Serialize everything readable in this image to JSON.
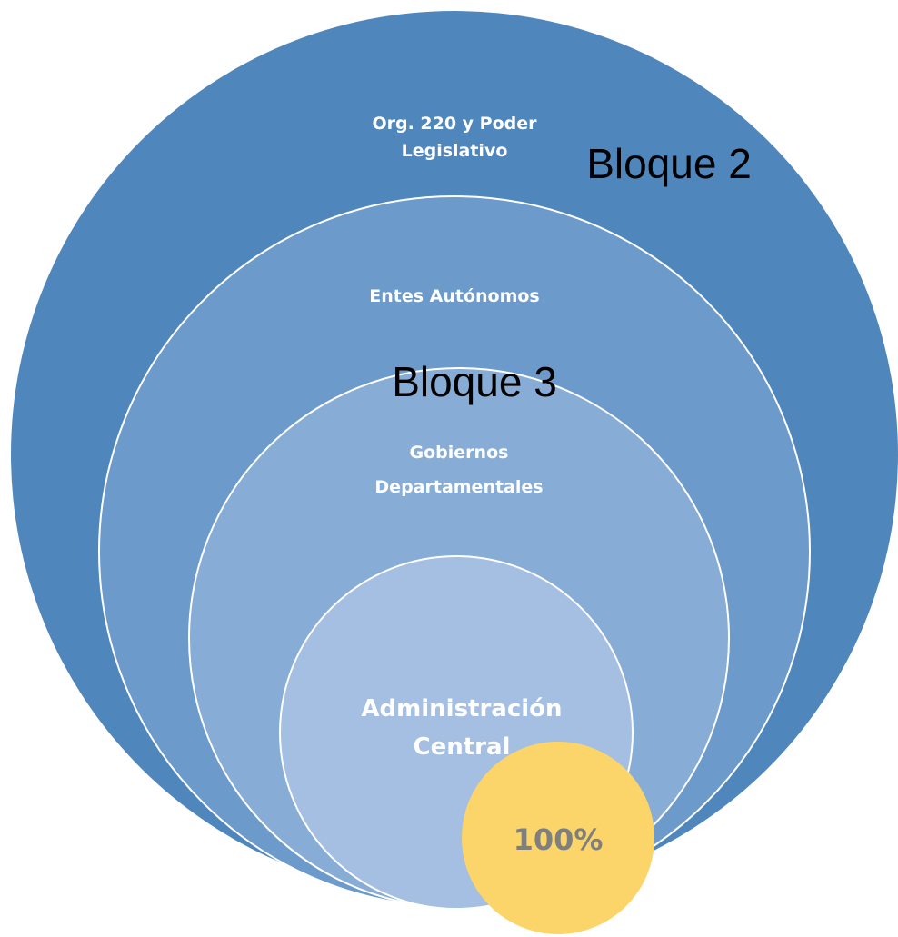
{
  "nodes": [
    {
      "label": "Org. 220 y Poder Legislativo"
    },
    {
      "label": "Entes Autónomos"
    },
    {
      "label": "Gobiernos Departamentales"
    },
    {
      "label": "Administración Central"
    },
    {
      "label": "100%"
    }
  ],
  "annotations": [
    "Bloque 2",
    "Bloque 3"
  ]
}
